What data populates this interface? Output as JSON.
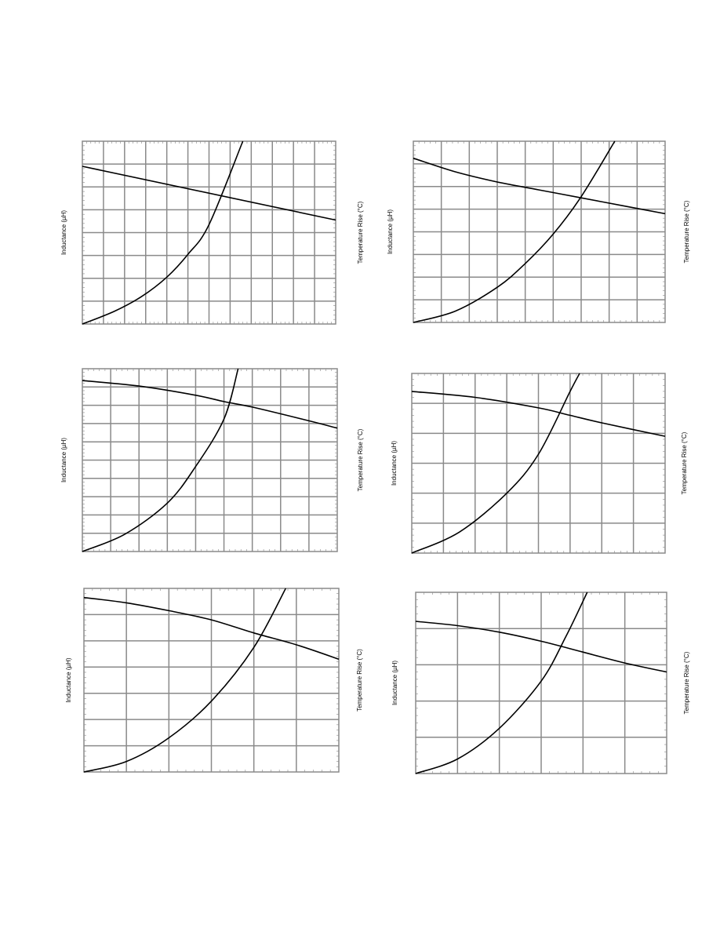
{
  "chart_data": [
    {
      "type": "line",
      "ylabel": "Inductance (µH)",
      "y2label": "Temperature Rise (°C)",
      "xlim": [
        0,
        12
      ],
      "ylim": [
        0,
        8
      ],
      "y2lim": [
        0,
        8
      ],
      "x_major": 12,
      "y_major": 8,
      "grid": true,
      "legend": "none",
      "series": [
        {
          "axis": "y",
          "x": [
            0,
            12
          ],
          "y": [
            6.9,
            4.55
          ]
        },
        {
          "axis": "y2",
          "x": [
            0,
            1.5,
            2.8,
            4,
            5,
            6,
            7.6
          ],
          "y": [
            0,
            0.55,
            1.2,
            2.05,
            3.05,
            4.35,
            8
          ]
        }
      ]
    },
    {
      "type": "line",
      "ylabel": "Inductance (µH)",
      "y2label": "Temperature Rise (°C)",
      "xlim": [
        0,
        9
      ],
      "ylim": [
        0,
        8
      ],
      "y2lim": [
        0,
        8
      ],
      "x_major": 9,
      "y_major": 8,
      "grid": true,
      "legend": "none",
      "series": [
        {
          "axis": "y",
          "x": [
            0,
            1.5,
            3,
            4.5,
            6,
            7.5,
            9
          ],
          "y": [
            7.25,
            6.65,
            6.2,
            5.85,
            5.5,
            5.15,
            4.8
          ]
        },
        {
          "axis": "y2",
          "x": [
            0,
            1.5,
            3,
            4,
            5,
            6,
            7.2
          ],
          "y": [
            0,
            0.5,
            1.55,
            2.6,
            3.9,
            5.55,
            8
          ]
        }
      ]
    },
    {
      "type": "line",
      "ylabel": "Inductance (µH)",
      "y2label": "Temperature Rise (°C)",
      "xlim": [
        0,
        9
      ],
      "ylim": [
        0,
        10
      ],
      "y2lim": [
        0,
        10
      ],
      "x_major": 9,
      "y_major": 10,
      "grid": true,
      "legend": "none",
      "series": [
        {
          "axis": "y",
          "x": [
            0,
            2,
            4,
            5,
            6,
            8,
            9
          ],
          "y": [
            9.35,
            9.05,
            8.55,
            8.2,
            7.9,
            7.15,
            6.75
          ]
        },
        {
          "axis": "y2",
          "x": [
            0,
            1.5,
            3,
            4,
            5,
            5.5
          ],
          "y": [
            0,
            0.95,
            2.65,
            4.65,
            7.25,
            10
          ]
        }
      ]
    },
    {
      "type": "line",
      "ylabel": "Inductance (µH)",
      "y2label": "Temperature Rise (°C)",
      "xlim": [
        0,
        8
      ],
      "ylim": [
        0,
        6
      ],
      "y2lim": [
        0,
        6
      ],
      "x_major": 8,
      "y_major": 6,
      "grid": true,
      "legend": "none",
      "series": [
        {
          "axis": "y",
          "x": [
            0,
            2,
            4,
            5,
            6,
            8
          ],
          "y": [
            5.4,
            5.2,
            4.85,
            4.6,
            4.35,
            3.9
          ]
        },
        {
          "axis": "y2",
          "x": [
            0,
            1.5,
            3,
            4,
            5,
            5.3
          ],
          "y": [
            0,
            0.7,
            2,
            3.3,
            5.4,
            6
          ]
        }
      ]
    },
    {
      "type": "line",
      "ylabel": "Inductance (µH)",
      "y2label": "Temperature Rise (°C)",
      "xlim": [
        0,
        6
      ],
      "ylim": [
        0,
        7
      ],
      "y2lim": [
        0,
        7
      ],
      "x_major": 6,
      "y_major": 7,
      "grid": true,
      "legend": "none",
      "series": [
        {
          "axis": "y",
          "x": [
            0,
            1,
            2,
            3,
            4,
            5,
            6
          ],
          "y": [
            6.65,
            6.45,
            6.15,
            5.8,
            5.3,
            4.85,
            4.3
          ]
        },
        {
          "axis": "y2",
          "x": [
            0,
            1,
            2,
            3,
            4,
            4.75
          ],
          "y": [
            0,
            0.4,
            1.3,
            2.7,
            4.75,
            7
          ]
        }
      ]
    },
    {
      "type": "line",
      "ylabel": "Inductance (µH)",
      "y2label": "Temperature Rise (°C)",
      "xlim": [
        0,
        6
      ],
      "ylim": [
        0,
        5
      ],
      "y2lim": [
        0,
        5
      ],
      "x_major": 6,
      "y_major": 5,
      "grid": true,
      "legend": "none",
      "series": [
        {
          "axis": "y",
          "x": [
            0,
            1,
            2,
            3,
            4,
            5,
            6
          ],
          "y": [
            4.2,
            4.08,
            3.9,
            3.65,
            3.35,
            3.05,
            2.8
          ]
        },
        {
          "axis": "y2",
          "x": [
            0,
            1,
            2,
            3,
            3.6,
            4.1
          ],
          "y": [
            0,
            0.4,
            1.25,
            2.55,
            3.8,
            5
          ]
        }
      ]
    }
  ]
}
